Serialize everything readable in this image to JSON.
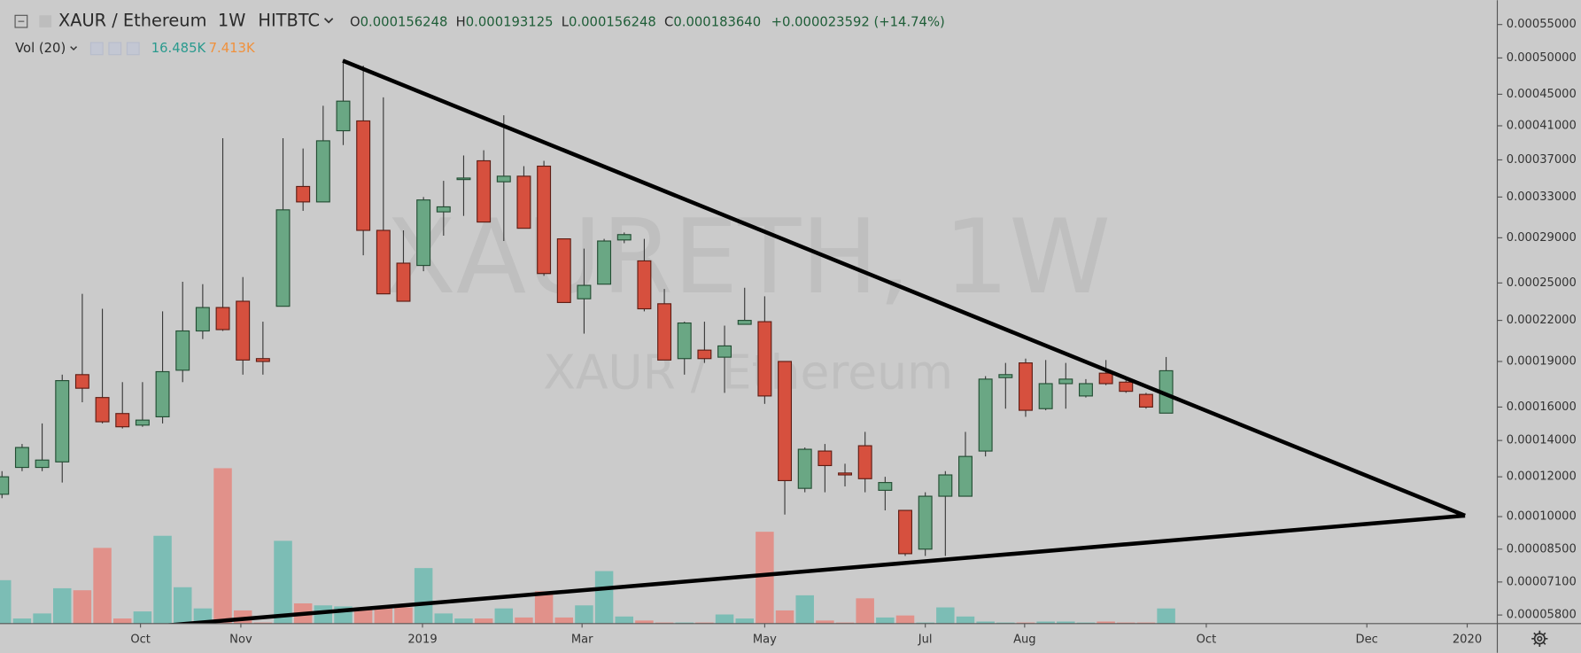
{
  "header": {
    "symbol": "XAUR / Ethereum",
    "interval": "1W",
    "exchange": "HITBTC",
    "ohlc": [
      {
        "label": "O",
        "value": "0.000156248"
      },
      {
        "label": "H",
        "value": "0.000193125"
      },
      {
        "label": "L",
        "value": "0.000156248"
      },
      {
        "label": "C",
        "value": "0.000183640"
      }
    ],
    "change": "+0.000023592 (+14.74%)"
  },
  "volume_legend": {
    "name": "Vol (20)",
    "volume": "16.485K",
    "ma": "7.413K"
  },
  "watermark": {
    "title": "XAURETH, 1W",
    "subtitle": "XAUR / Ethereum"
  },
  "chart_data": {
    "type": "candlestick",
    "open": [
      0.000111,
      0.000125,
      0.000125,
      0.000128,
      0.000181,
      0.000166,
      0.000156,
      0.000149,
      0.000154,
      0.000184,
      0.000212,
      0.00023,
      0.000235,
      0.000192,
      0.000231,
      0.000341,
      0.000325,
      0.000404,
      0.000416,
      0.000297,
      0.000267,
      0.000265,
      0.000315,
      0.000349,
      0.000369,
      0.000346,
      0.000352,
      0.000363,
      0.000289,
      0.000237,
      0.000249,
      0.000288,
      0.000269,
      0.000233,
      0.000192,
      0.000198,
      0.000193,
      0.000217,
      0.000219,
      0.00019,
      0.000114,
      0.000134,
      0.000122,
      0.000137,
      0.000113,
      0.000103,
      8.5e-05,
      0.00011,
      0.00011,
      0.000134,
      0.000179,
      0.000189,
      0.000159,
      0.000175,
      0.000167,
      0.000182,
      0.000176,
      0.000168,
      0.000156248
    ],
    "high": [
      0.000123,
      0.000138,
      0.00015,
      0.000181,
      0.000241,
      0.000229,
      0.000176,
      0.000176,
      0.000227,
      0.000251,
      0.000249,
      0.000395,
      0.000255,
      0.000219,
      0.000395,
      0.000383,
      0.000435,
      0.000497,
      0.000489,
      0.000446,
      0.000297,
      0.00033,
      0.000347,
      0.000375,
      0.000381,
      0.000423,
      0.000363,
      0.000369,
      0.000289,
      0.00028,
      0.000289,
      0.000295,
      0.000289,
      0.000245,
      0.000219,
      0.000219,
      0.000216,
      0.000246,
      0.000239,
      0.00019,
      0.000136,
      0.000138,
      0.000127,
      0.000145,
      0.00012,
      0.000103,
      0.000112,
      0.000123,
      0.000145,
      0.00018,
      0.000189,
      0.000192,
      0.000191,
      0.000189,
      0.000178,
      0.000191,
      0.000178,
      0.000169,
      0.000193125
    ],
    "low": [
      0.000109,
      0.000123,
      0.000123,
      0.000117,
      0.000163,
      0.00015,
      0.000147,
      0.000148,
      0.00015,
      0.000176,
      0.000206,
      0.000212,
      0.000181,
      0.000181,
      0.000231,
      0.000316,
      0.000325,
      0.000387,
      0.000274,
      0.000241,
      0.000235,
      0.00026,
      0.000292,
      0.000311,
      0.000305,
      0.000287,
      0.000299,
      0.000256,
      0.000234,
      0.00021,
      0.000249,
      0.000285,
      0.000227,
      0.000191,
      0.000181,
      0.000189,
      0.000169,
      0.000217,
      0.000162,
      0.000101,
      0.000112,
      0.000112,
      0.000115,
      0.000112,
      0.000103,
      8.2e-05,
      8.2e-05,
      8.2e-05,
      0.00011,
      0.000131,
      0.000159,
      0.000154,
      0.000158,
      0.000159,
      0.000166,
      0.000174,
      0.000169,
      0.000159,
      0.000156248
    ],
    "close": [
      0.00012,
      0.000136,
      0.000129,
      0.000177,
      0.000172,
      0.000151,
      0.000148,
      0.000152,
      0.000183,
      0.000212,
      0.00023,
      0.000213,
      0.000191,
      0.00019,
      0.000317,
      0.000325,
      0.000392,
      0.000441,
      0.000297,
      0.000241,
      0.000235,
      0.000327,
      0.00032,
      0.00035,
      0.000305,
      0.000352,
      0.000299,
      0.000258,
      0.000234,
      0.000248,
      0.000287,
      0.000293,
      0.000229,
      0.000191,
      0.000218,
      0.000192,
      0.000201,
      0.00022,
      0.000167,
      0.000118,
      0.000135,
      0.000126,
      0.000121,
      0.000119,
      0.000117,
      8.3e-05,
      0.00011,
      0.000121,
      0.000131,
      0.000178,
      0.000181,
      0.000158,
      0.000175,
      0.000178,
      0.000175,
      0.000175,
      0.00017,
      0.00016,
      0.00018364
    ],
    "volume": [
      47.3,
      5.5,
      11,
      38.5,
      36.3,
      82.5,
      5.5,
      13.2,
      95.7,
      39.6,
      16.5,
      169.4,
      14.3,
      1.1,
      90.2,
      22,
      19.8,
      18.7,
      16.5,
      16.5,
      17.6,
      60.5,
      11,
      5.5,
      5.5,
      16.5,
      6.6,
      35.2,
      6.6,
      19.8,
      57.2,
      7.7,
      3.3,
      1.1,
      1.1,
      1.1,
      9.9,
      5.5,
      100.1,
      14.3,
      30.8,
      3.3,
      1.1,
      27.5,
      6.6,
      8.8,
      1.1,
      17.6,
      7.7,
      2.2,
      1.1,
      1.1,
      2.2,
      2.2,
      1.1,
      2.2,
      1.1,
      1.1,
      16.485
    ],
    "up_color": "#6aa784",
    "down_color": "#d6503e",
    "volume_up_color": "#7cbdb5",
    "volume_down_color": "#e1918a",
    "ylim": [
      5.48e-05,
      0.000589
    ],
    "yticks": [
      {
        "value": 5.8e-05,
        "label": "0.00005800"
      },
      {
        "value": 7.1e-05,
        "label": "0.00007100"
      },
      {
        "value": 8.5e-05,
        "label": "0.00008500"
      },
      {
        "value": 0.0001,
        "label": "0.00010000"
      },
      {
        "value": 0.00012,
        "label": "0.00012000"
      },
      {
        "value": 0.00014,
        "label": "0.00014000"
      },
      {
        "value": 0.00016,
        "label": "0.00016000"
      },
      {
        "value": 0.00019,
        "label": "0.00019000"
      },
      {
        "value": 0.00022,
        "label": "0.00022000"
      },
      {
        "value": 0.00025,
        "label": "0.00025000"
      },
      {
        "value": 0.00029,
        "label": "0.00029000"
      },
      {
        "value": 0.00033,
        "label": "0.00033000"
      },
      {
        "value": 0.00037,
        "label": "0.00037000"
      },
      {
        "value": 0.00041,
        "label": "0.00041000"
      },
      {
        "value": 0.00045,
        "label": "0.00045000"
      },
      {
        "value": 0.0005,
        "label": "0.00050000"
      },
      {
        "value": 0.00055,
        "label": "0.00055000"
      }
    ],
    "xlim": [
      -0.1,
      74.5
    ],
    "xticks": [
      {
        "value": 6.9,
        "label": "Oct"
      },
      {
        "value": 11.9,
        "label": "Nov"
      },
      {
        "value": 20.95,
        "label": "2019"
      },
      {
        "value": 28.9,
        "label": "Mar"
      },
      {
        "value": 38.0,
        "label": "May"
      },
      {
        "value": 46.0,
        "label": "Jul"
      },
      {
        "value": 50.95,
        "label": "Aug"
      },
      {
        "value": 60.0,
        "label": "Oct"
      },
      {
        "value": 68.0,
        "label": "Dec"
      },
      {
        "value": 73.0,
        "label": "2020"
      }
    ]
  }
}
